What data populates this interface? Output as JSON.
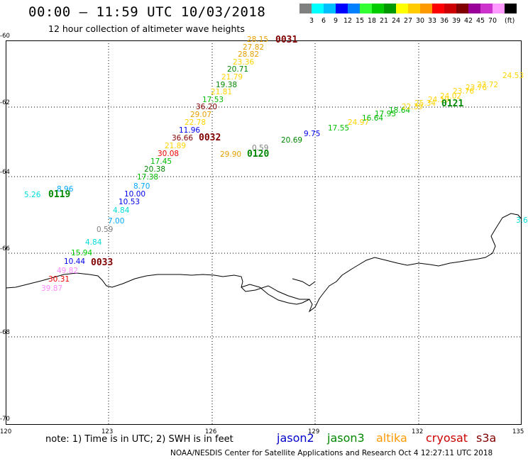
{
  "header": {
    "title": "00:00 – 11:59 UTC 10/03/2018",
    "subtitle": "12 hour collection of altimeter wave heights"
  },
  "legend": {
    "colors": [
      "#808080",
      "#00ffff",
      "#00bfff",
      "#0000ff",
      "#0080ff",
      "#33ff33",
      "#00cc00",
      "#009900",
      "#ffff00",
      "#ffcc00",
      "#ff9900",
      "#ff0000",
      "#cc0000",
      "#800000",
      "#990099",
      "#cc33cc",
      "#ff99ff",
      "#000000"
    ],
    "labels": [
      "3",
      "6",
      "9",
      "12",
      "15",
      "18",
      "21",
      "24",
      "27",
      "30",
      "33",
      "36",
      "39",
      "42",
      "45",
      "70"
    ],
    "unit": "(ft)"
  },
  "axes": {
    "y_labels": [
      "-60",
      "-62",
      "-64",
      "-66",
      "-68",
      "-70"
    ],
    "x_labels": [
      "120",
      "123",
      "126",
      "129",
      "132",
      "135"
    ]
  },
  "wave_heights": [
    {
      "t": "28.15",
      "c": "#e8a000"
    },
    {
      "t": "27.82",
      "c": "#e8a000"
    },
    {
      "t": "28.82",
      "c": "#e8a000"
    },
    {
      "t": "23.36",
      "c": "#ffd400"
    },
    {
      "t": "20.71",
      "c": "#008800"
    },
    {
      "t": "21.79",
      "c": "#ffd400"
    },
    {
      "t": "19.38",
      "c": "#008800"
    },
    {
      "t": "21.81",
      "c": "#ffd400"
    },
    {
      "t": "17.53",
      "c": "#00bb00"
    },
    {
      "t": "36.20",
      "c": "#800000"
    },
    {
      "t": "29.07",
      "c": "#e8a000"
    },
    {
      "t": "22.78",
      "c": "#ffd400"
    },
    {
      "t": "11.96",
      "c": "#0000ee"
    },
    {
      "t": "36.66",
      "c": "#800000"
    },
    {
      "t": "21.89",
      "c": "#ffd400"
    },
    {
      "t": "30.08",
      "c": "#ee0000"
    },
    {
      "t": "17.45",
      "c": "#00bb00"
    },
    {
      "t": "20.38",
      "c": "#008800"
    },
    {
      "t": "17.38",
      "c": "#00bb00"
    },
    {
      "t": "8.70",
      "c": "#00a8ff"
    },
    {
      "t": "10.00",
      "c": "#0000ee"
    },
    {
      "t": "10.53",
      "c": "#0000ee"
    },
    {
      "t": "4.84",
      "c": "#00dddd"
    },
    {
      "t": "7.00",
      "c": "#00a8ff"
    },
    {
      "t": "0.59",
      "c": "#808080"
    },
    {
      "t": "4.84",
      "c": "#00dddd"
    },
    {
      "t": "15.94",
      "c": "#00cc00"
    },
    {
      "t": "10.44",
      "c": "#0000ee"
    },
    {
      "t": "49.82",
      "c": "#ff88ff"
    },
    {
      "t": "30.31",
      "c": "#ee0000"
    },
    {
      "t": "39.87",
      "c": "#ff88ff"
    },
    {
      "t": "5.26",
      "c": "#00dddd"
    },
    {
      "t": "8.96",
      "c": "#00a8ff"
    },
    {
      "t": "29.90",
      "c": "#e8a000"
    },
    {
      "t": "0.59",
      "c": "#808080"
    },
    {
      "t": "20.69",
      "c": "#008800"
    },
    {
      "t": "9.75",
      "c": "#0000ee"
    },
    {
      "t": "17.55",
      "c": "#00bb00"
    },
    {
      "t": "24.97",
      "c": "#ffd400"
    },
    {
      "t": "16.64",
      "c": "#00bb00"
    },
    {
      "t": "17.95",
      "c": "#00bb00"
    },
    {
      "t": "18.64",
      "c": "#00bb00"
    },
    {
      "t": "22.39",
      "c": "#ffd400"
    },
    {
      "t": "25.34",
      "c": "#ffd400"
    },
    {
      "t": "24.19",
      "c": "#ffd400"
    },
    {
      "t": "24.02",
      "c": "#ffd400"
    },
    {
      "t": "23.76",
      "c": "#ffd400"
    },
    {
      "t": "23.76",
      "c": "#ffd400"
    },
    {
      "t": "23.72",
      "c": "#ffd400"
    },
    {
      "t": "24.53",
      "c": "#ffd400"
    },
    {
      "t": "3.6",
      "c": "#00dddd"
    }
  ],
  "passes": [
    {
      "t": "0031",
      "c": "#800000"
    },
    {
      "t": "0032",
      "c": "#800000"
    },
    {
      "t": "0033",
      "c": "#800000"
    },
    {
      "t": "0119",
      "c": "#008800"
    },
    {
      "t": "0120",
      "c": "#008800"
    },
    {
      "t": "0121",
      "c": "#008800"
    }
  ],
  "footer": {
    "note": "note: 1) Time is in UTC; 2) SWH is in feet",
    "satellites": [
      {
        "name": "jason2",
        "color": "#0000cc"
      },
      {
        "name": "jason3",
        "color": "#008800"
      },
      {
        "name": "altika",
        "color": "#ff9900"
      },
      {
        "name": "cryosat",
        "color": "#cc0000"
      },
      {
        "name": "s3a",
        "color": "#800000"
      }
    ],
    "credit": "NOAA/NESDIS Center for Satellite Applications and Research    Oct  4 12:27:11 UTC 2018"
  }
}
